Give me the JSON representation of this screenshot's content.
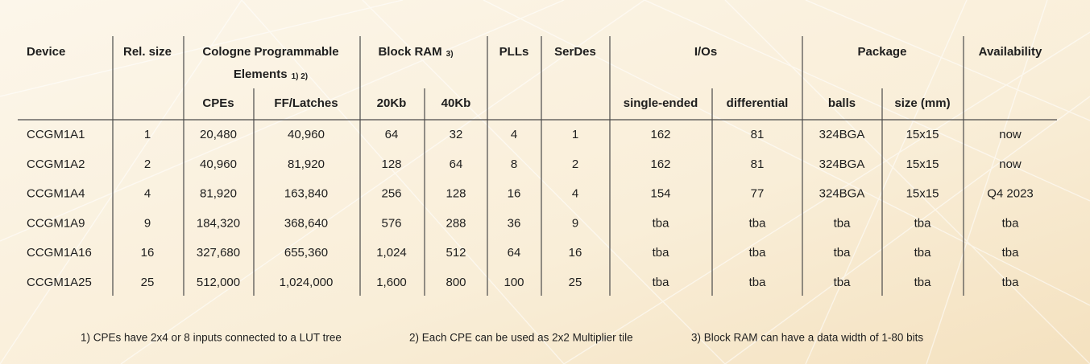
{
  "table": {
    "groups": [
      {
        "label": "Device"
      },
      {
        "label": "Rel. size"
      },
      {
        "label": "Cologne Programmable",
        "label2": "Elements",
        "note": "1) 2)"
      },
      {
        "label": "Block RAM",
        "note": "3)"
      },
      {
        "label": "PLLs"
      },
      {
        "label": "SerDes"
      },
      {
        "label": "I/Os"
      },
      {
        "label": "Package"
      },
      {
        "label": "Availability"
      }
    ],
    "subheaders": [
      null,
      null,
      "CPEs",
      "FF/Latches",
      "20Kb",
      "40Kb",
      null,
      null,
      "single-ended",
      "differential",
      "balls",
      "size (mm)",
      null
    ],
    "rows": [
      [
        "CCGM1A1",
        "1",
        "20,480",
        "40,960",
        "64",
        "32",
        "4",
        "1",
        "162",
        "81",
        "324BGA",
        "15x15",
        "now"
      ],
      [
        "CCGM1A2",
        "2",
        "40,960",
        "81,920",
        "128",
        "64",
        "8",
        "2",
        "162",
        "81",
        "324BGA",
        "15x15",
        "now"
      ],
      [
        "CCGM1A4",
        "4",
        "81,920",
        "163,840",
        "256",
        "128",
        "16",
        "4",
        "154",
        "77",
        "324BGA",
        "15x15",
        "Q4 2023"
      ],
      [
        "CCGM1A9",
        "9",
        "184,320",
        "368,640",
        "576",
        "288",
        "36",
        "9",
        "tba",
        "tba",
        "tba",
        "tba",
        "tba"
      ],
      [
        "CCGM1A16",
        "16",
        "327,680",
        "655,360",
        "1,024",
        "512",
        "64",
        "16",
        "tba",
        "tba",
        "tba",
        "tba",
        "tba"
      ],
      [
        "CCGM1A25",
        "25",
        "512,000",
        "1,024,000",
        "1,600",
        "800",
        "100",
        "25",
        "tba",
        "tba",
        "tba",
        "tba",
        "tba"
      ]
    ],
    "footnotes": [
      "1) CPEs have 2x4 or 8 inputs connected to a LUT tree",
      "2) Each CPE can be used as 2x2 Multiplier tile",
      "3) Block RAM can have a data width of 1-80 bits"
    ]
  }
}
